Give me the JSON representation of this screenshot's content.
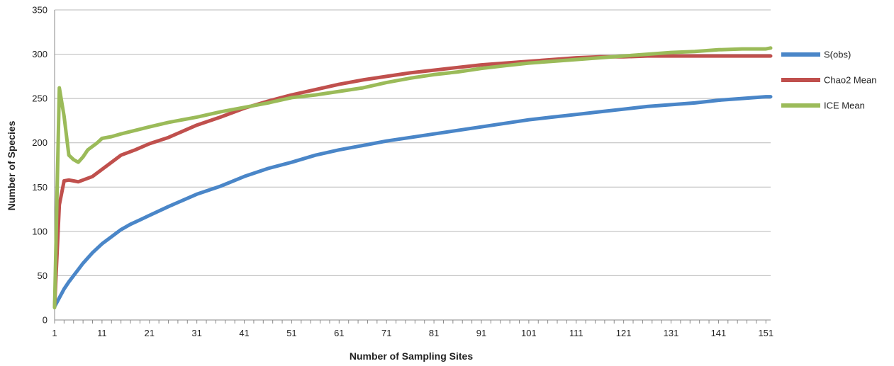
{
  "chart_data": {
    "type": "line",
    "title": "",
    "xlabel": "Number of Sampling Sites",
    "ylabel": "Number of Species",
    "xlim": [
      1,
      152
    ],
    "ylim": [
      0,
      350
    ],
    "x_ticks": [
      1,
      11,
      21,
      31,
      41,
      51,
      61,
      71,
      81,
      91,
      101,
      111,
      121,
      131,
      141,
      151
    ],
    "y_ticks": [
      0,
      50,
      100,
      150,
      200,
      250,
      300,
      350
    ],
    "grid": "horizontal",
    "legend": "right",
    "series": [
      {
        "name": "S(obs)",
        "color": "#4a86c8",
        "points": [
          [
            1,
            15
          ],
          [
            2,
            25
          ],
          [
            3,
            35
          ],
          [
            4,
            43
          ],
          [
            5,
            50
          ],
          [
            6,
            57
          ],
          [
            7,
            64
          ],
          [
            8,
            70
          ],
          [
            9,
            76
          ],
          [
            11,
            86
          ],
          [
            13,
            94
          ],
          [
            15,
            102
          ],
          [
            17,
            108
          ],
          [
            19,
            113
          ],
          [
            21,
            118
          ],
          [
            25,
            128
          ],
          [
            31,
            142
          ],
          [
            36,
            151
          ],
          [
            41,
            162
          ],
          [
            46,
            171
          ],
          [
            51,
            178
          ],
          [
            56,
            186
          ],
          [
            61,
            192
          ],
          [
            66,
            197
          ],
          [
            71,
            202
          ],
          [
            76,
            206
          ],
          [
            81,
            210
          ],
          [
            86,
            214
          ],
          [
            91,
            218
          ],
          [
            96,
            222
          ],
          [
            101,
            226
          ],
          [
            106,
            229
          ],
          [
            111,
            232
          ],
          [
            116,
            235
          ],
          [
            121,
            238
          ],
          [
            126,
            241
          ],
          [
            131,
            243
          ],
          [
            136,
            245
          ],
          [
            141,
            248
          ],
          [
            146,
            250
          ],
          [
            151,
            252
          ],
          [
            152,
            252
          ]
        ]
      },
      {
        "name": "Chao2 Mean",
        "color": "#c0504d",
        "points": [
          [
            1,
            15
          ],
          [
            2,
            130
          ],
          [
            3,
            157
          ],
          [
            4,
            158
          ],
          [
            5,
            157
          ],
          [
            6,
            156
          ],
          [
            7,
            158
          ],
          [
            9,
            162
          ],
          [
            11,
            170
          ],
          [
            13,
            178
          ],
          [
            15,
            186
          ],
          [
            18,
            192
          ],
          [
            21,
            199
          ],
          [
            25,
            206
          ],
          [
            31,
            220
          ],
          [
            36,
            229
          ],
          [
            41,
            239
          ],
          [
            46,
            247
          ],
          [
            51,
            254
          ],
          [
            56,
            260
          ],
          [
            61,
            266
          ],
          [
            66,
            271
          ],
          [
            71,
            275
          ],
          [
            76,
            279
          ],
          [
            81,
            282
          ],
          [
            86,
            285
          ],
          [
            91,
            288
          ],
          [
            96,
            290
          ],
          [
            101,
            292
          ],
          [
            106,
            294
          ],
          [
            111,
            296
          ],
          [
            116,
            297
          ],
          [
            121,
            297
          ],
          [
            126,
            298
          ],
          [
            131,
            298
          ],
          [
            136,
            298
          ],
          [
            141,
            298
          ],
          [
            146,
            298
          ],
          [
            151,
            298
          ],
          [
            152,
            298
          ]
        ]
      },
      {
        "name": "ICE Mean",
        "color": "#9bbb59",
        "points": [
          [
            1,
            14
          ],
          [
            2,
            262
          ],
          [
            3,
            230
          ],
          [
            4,
            186
          ],
          [
            5,
            181
          ],
          [
            6,
            178
          ],
          [
            7,
            184
          ],
          [
            8,
            192
          ],
          [
            9,
            196
          ],
          [
            10,
            200
          ],
          [
            11,
            205
          ],
          [
            13,
            207
          ],
          [
            15,
            210
          ],
          [
            18,
            214
          ],
          [
            21,
            218
          ],
          [
            25,
            223
          ],
          [
            31,
            229
          ],
          [
            36,
            235
          ],
          [
            41,
            240
          ],
          [
            46,
            245
          ],
          [
            51,
            251
          ],
          [
            56,
            254
          ],
          [
            61,
            258
          ],
          [
            66,
            262
          ],
          [
            71,
            268
          ],
          [
            76,
            273
          ],
          [
            81,
            277
          ],
          [
            86,
            280
          ],
          [
            91,
            284
          ],
          [
            96,
            287
          ],
          [
            101,
            290
          ],
          [
            106,
            292
          ],
          [
            111,
            294
          ],
          [
            116,
            296
          ],
          [
            121,
            298
          ],
          [
            126,
            300
          ],
          [
            131,
            302
          ],
          [
            136,
            303
          ],
          [
            141,
            305
          ],
          [
            146,
            306
          ],
          [
            151,
            306
          ],
          [
            152,
            307
          ]
        ]
      }
    ]
  }
}
